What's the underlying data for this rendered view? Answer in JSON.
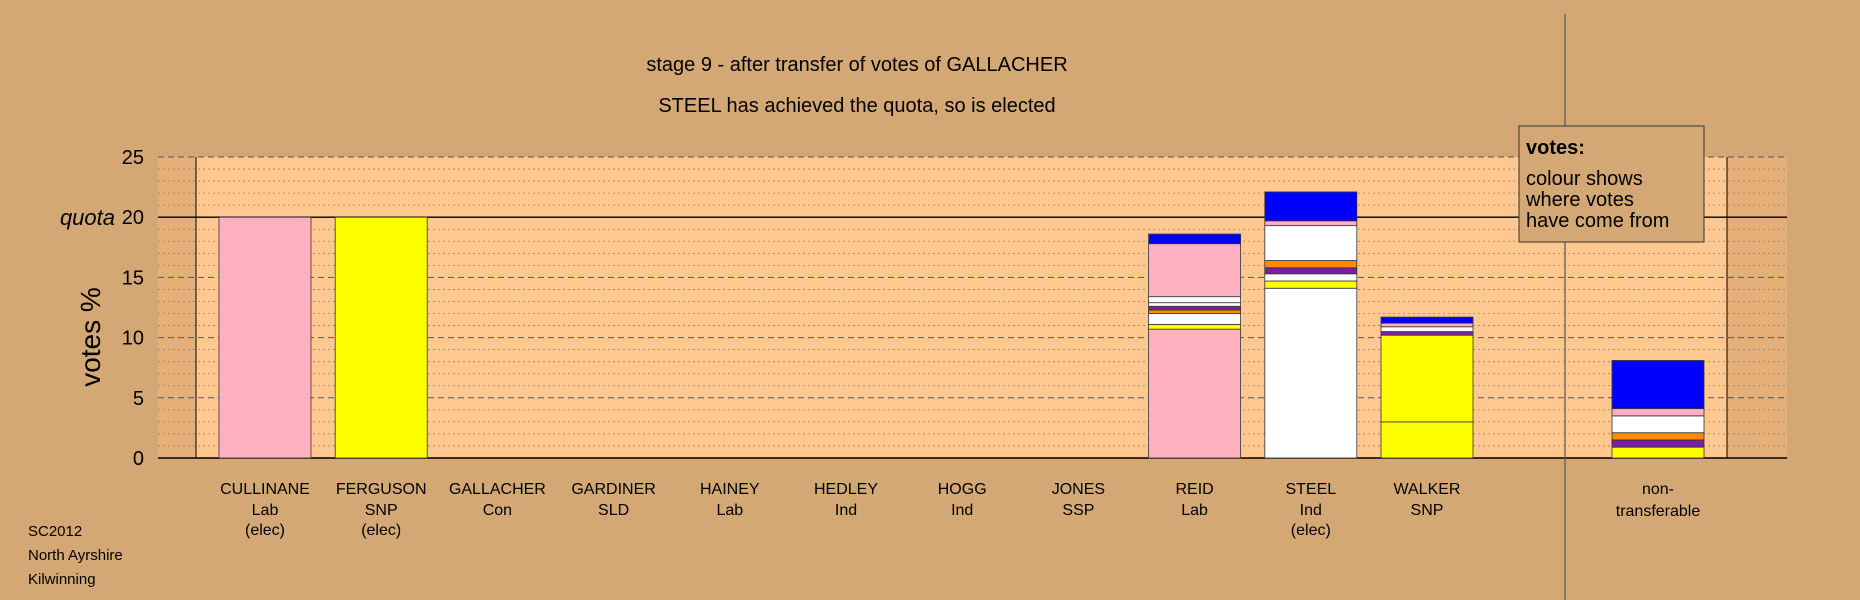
{
  "chart_data": {
    "type": "bar",
    "stacked": true,
    "title": "stage 9 - after transfer of votes of GALLACHER",
    "subtitle": "STEEL has achieved the quota, so is elected",
    "ylabel": "votes %",
    "ylim": [
      0,
      25
    ],
    "yticks": [
      0,
      5,
      10,
      15,
      20,
      25
    ],
    "quota": 20,
    "quota_label": "quota",
    "grid": true,
    "legend": {
      "title": "votes:",
      "lines": [
        "colour shows",
        "where votes",
        "have come from"
      ],
      "placement": "top-right"
    },
    "categories": [
      {
        "name": "CULLINANE",
        "party": "Lab",
        "note": "(elec)"
      },
      {
        "name": "FERGUSON",
        "party": "SNP",
        "note": "(elec)"
      },
      {
        "name": "GALLACHER",
        "party": "Con",
        "note": ""
      },
      {
        "name": "GARDINER",
        "party": "SLD",
        "note": ""
      },
      {
        "name": "HAINEY",
        "party": "Lab",
        "note": ""
      },
      {
        "name": "HEDLEY",
        "party": "Ind",
        "note": ""
      },
      {
        "name": "HOGG",
        "party": "Ind",
        "note": ""
      },
      {
        "name": "JONES",
        "party": "SSP",
        "note": ""
      },
      {
        "name": "REID",
        "party": "Lab",
        "note": ""
      },
      {
        "name": "STEEL",
        "party": "Ind",
        "note": "(elec)"
      },
      {
        "name": "WALKER",
        "party": "SNP",
        "note": ""
      }
    ],
    "nontransferable_label": [
      "non-",
      "transferable"
    ],
    "bars": [
      [
        {
          "v": 20.0,
          "c": "#ffb0c0"
        }
      ],
      [
        {
          "v": 20.0,
          "c": "#ffff00"
        }
      ],
      [],
      [],
      [],
      [],
      [],
      [],
      [
        {
          "v": 10.7,
          "c": "#ffb0c0"
        },
        {
          "v": 0.4,
          "c": "#ffff00"
        },
        {
          "v": 0.9,
          "c": "#ffffff"
        },
        {
          "v": 0.3,
          "c": "#ff8c00"
        },
        {
          "v": 0.3,
          "c": "#7b1fa2"
        },
        {
          "v": 0.3,
          "c": "#ffffff"
        },
        {
          "v": 0.5,
          "c": "#ffffff"
        },
        {
          "v": 4.4,
          "c": "#ffb0c0"
        },
        {
          "v": 0.8,
          "c": "#0000ff"
        }
      ],
      [
        {
          "v": 14.1,
          "c": "#ffffff"
        },
        {
          "v": 0.6,
          "c": "#ffff00"
        },
        {
          "v": 0.6,
          "c": "#ffffff"
        },
        {
          "v": 0.5,
          "c": "#7b1fa2"
        },
        {
          "v": 0.6,
          "c": "#ff8c00"
        },
        {
          "v": 2.9,
          "c": "#ffffff"
        },
        {
          "v": 0.4,
          "c": "#ffb0c0"
        },
        {
          "v": 2.4,
          "c": "#0000ff"
        }
      ],
      [
        {
          "v": 3.0,
          "c": "#ffff00"
        },
        {
          "v": 7.2,
          "c": "#ffff00"
        },
        {
          "v": 0.3,
          "c": "#7b1fa2"
        },
        {
          "v": 0.4,
          "c": "#ffffff"
        },
        {
          "v": 0.3,
          "c": "#ffb0c0"
        },
        {
          "v": 0.5,
          "c": "#0000ff"
        }
      ]
    ],
    "nontransferable": [
      {
        "v": 0.9,
        "c": "#ffff00"
      },
      {
        "v": 0.6,
        "c": "#7b1fa2"
      },
      {
        "v": 0.6,
        "c": "#ff8c00"
      },
      {
        "v": 1.4,
        "c": "#ffffff"
      },
      {
        "v": 0.6,
        "c": "#ffb0c0"
      },
      {
        "v": 4.0,
        "c": "#0000ff"
      }
    ],
    "colors": {
      "background": "#d4a874",
      "plot_area": "#ffc890",
      "shade": "#c4915c"
    }
  },
  "footer": [
    "SC2012",
    "North Ayrshire",
    "Kilwinning"
  ]
}
